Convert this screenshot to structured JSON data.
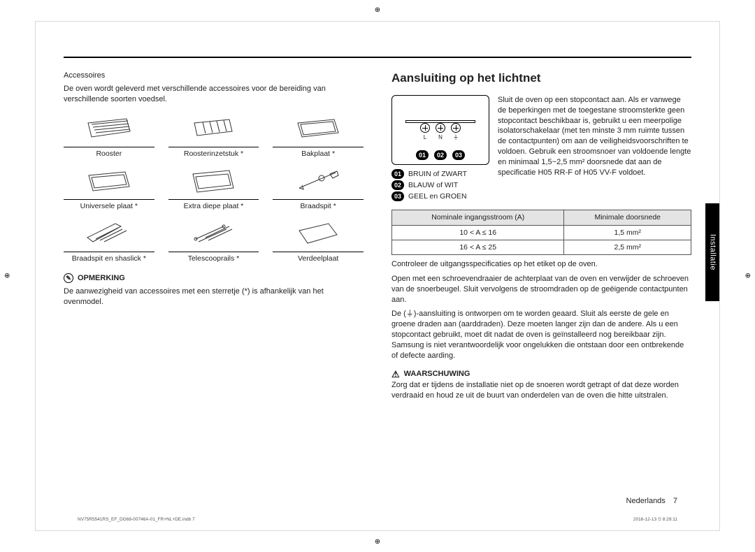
{
  "rule_color": "#000000",
  "left": {
    "section_title": "Accessoires",
    "intro": "De oven wordt geleverd met verschillende accessoires voor de bereiding van verschillende soorten voedsel.",
    "items": [
      {
        "label": "Rooster"
      },
      {
        "label": "Roosterinzetstuk *"
      },
      {
        "label": "Bakplaat *"
      },
      {
        "label": "Universele plaat *"
      },
      {
        "label": "Extra diepe plaat *"
      },
      {
        "label": "Braadspit *"
      },
      {
        "label": "Braadspit en shaslick *"
      },
      {
        "label": "Telescooprails *"
      },
      {
        "label": "Verdeelplaat"
      }
    ],
    "note_label": "OPMERKING",
    "note_text": "De aanwezigheid van accessoires met een sterretje (*) is afhankelijk van het ovenmodel."
  },
  "right": {
    "heading": "Aansluiting op het lichtnet",
    "terminals": [
      "L",
      "N",
      "⏚"
    ],
    "badges": [
      "01",
      "02",
      "03"
    ],
    "legend": [
      {
        "n": "01",
        "t": "BRUIN of ZWART"
      },
      {
        "n": "02",
        "t": "BLAUW of WIT"
      },
      {
        "n": "03",
        "t": "GEEL en GROEN"
      }
    ],
    "conn_text": "Sluit de oven op een stopcontact aan. Als er vanwege de beperkingen met de toegestane stroomsterkte geen stopcontact beschikbaar is, gebruikt u een meerpolige isolatorschakelaar (met ten minste 3 mm ruimte tussen de contactpunten) om aan de veiligheidsvoorschriften te voldoen. Gebruik een stroomsnoer van voldoende lengte en minimaal 1,5~2,5 mm² doorsnede dat aan de specificatie H05 RR-F of H05 VV-F voldoet.",
    "table": {
      "head": [
        "Nominale ingangsstroom (A)",
        "Minimale doorsnede"
      ],
      "rows": [
        [
          "10 < A ≤ 16",
          "1,5 mm²"
        ],
        [
          "16 < A ≤ 25",
          "2,5 mm²"
        ]
      ]
    },
    "para1": "Controleer de uitgangsspecificaties op het etiket op de oven.",
    "para2": "Open met een schroevendraaier de achterplaat van de oven en verwijder de schroeven van de snoerbeugel. Sluit vervolgens de stroomdraden op de geëigende contactpunten aan.",
    "para3": "De (⏚)-aansluiting is ontworpen om te worden geaard. Sluit als eerste de gele en groene draden aan (aarddraden). Deze moeten langer zijn dan de andere. Als u een stopcontact gebruikt, moet dit nadat de oven is geïnstalleerd nog bereikbaar zijn. Samsung is niet verantwoordelijk voor ongelukken die ontstaan door een ontbrekende of defecte aarding.",
    "warn_label": "WAARSCHUWING",
    "warn_text": "Zorg dat er tijdens de installatie niet op de snoeren wordt getrapt of dat deze worden verdraaid en houd ze uit de buurt van onderdelen van de oven die hitte uitstralen."
  },
  "side_tab": "Installatie",
  "footer_lang": "Nederlands",
  "footer_page": "7",
  "imprint_left": "NV75R5541RS_EF_DG68-00746A-01_FR+NL+DE.indb   7",
  "imprint_right": "2016-12-13   ⏲ 8:29:11"
}
